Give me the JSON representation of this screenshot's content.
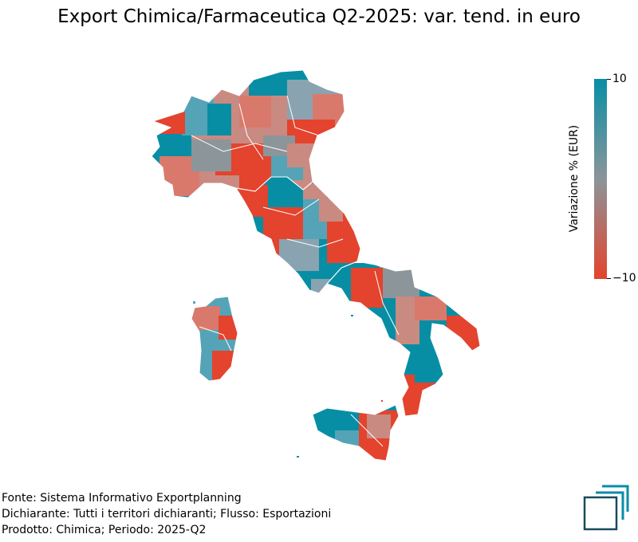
{
  "title": "Export Chimica/Farmaceutica Q2-2025: var. tend. in euro",
  "colorbar": {
    "label": "Variazione % (EUR)",
    "max_label": "10",
    "min_label": "−10",
    "max": 10,
    "min": -10,
    "color_high": "#078ea5",
    "color_mid": "#8b959a",
    "color_low": "#e4432d"
  },
  "footer": {
    "line1": "Fonte: Sistema Informativo Exportplanning",
    "line2": "Dichiarante: Tutti i territori dichiaranti; Flusso: Esportazioni",
    "line3": "Prodotto: Chimica; Periodo: 2025-Q2"
  },
  "logo": {
    "icon": "exportplanning-logo-icon",
    "color": "#1a4a5c",
    "accent": "#078ea5"
  }
}
